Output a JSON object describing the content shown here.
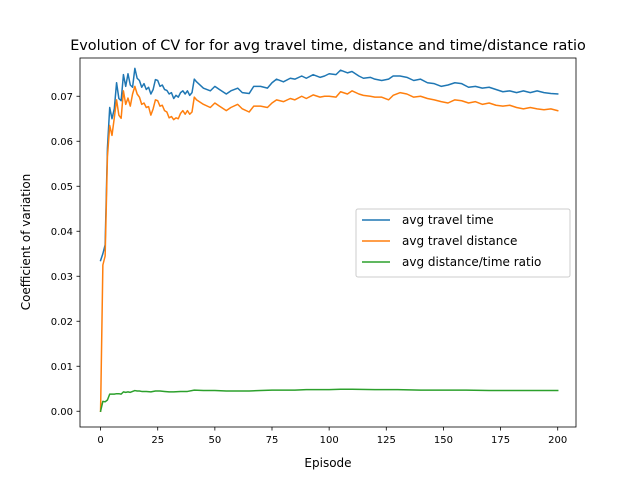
{
  "chart_data": {
    "type": "line",
    "title": "Evolution of CV for for avg travel time, distance and time/distance ratio",
    "xlabel": "Episode",
    "ylabel": "Coefficient of variation",
    "xlim": [
      -9,
      208
    ],
    "ylim": [
      -0.0035,
      0.0785
    ],
    "xticks": [
      "0",
      "25",
      "50",
      "75",
      "100",
      "125",
      "150",
      "175",
      "200"
    ],
    "yticks": [
      "0.00",
      "0.01",
      "0.02",
      "0.03",
      "0.04",
      "0.05",
      "0.06",
      "0.07"
    ],
    "grid": false,
    "legend_position": "center-right",
    "series": [
      {
        "name": "avg travel time",
        "color": "#1f77b4",
        "points": [
          [
            0,
            0.0335
          ],
          [
            1,
            0.035
          ],
          [
            2,
            0.037
          ],
          [
            3,
            0.0585
          ],
          [
            4,
            0.0675
          ],
          [
            5,
            0.065
          ],
          [
            6,
            0.0672
          ],
          [
            7,
            0.073
          ],
          [
            8,
            0.0695
          ],
          [
            9,
            0.069
          ],
          [
            10,
            0.0748
          ],
          [
            11,
            0.0722
          ],
          [
            12,
            0.075
          ],
          [
            13,
            0.0725
          ],
          [
            14,
            0.072
          ],
          [
            15,
            0.0762
          ],
          [
            16,
            0.074
          ],
          [
            17,
            0.0735
          ],
          [
            18,
            0.072
          ],
          [
            19,
            0.0728
          ],
          [
            20,
            0.0715
          ],
          [
            21,
            0.072
          ],
          [
            22,
            0.0705
          ],
          [
            23,
            0.0715
          ],
          [
            24,
            0.0737
          ],
          [
            25,
            0.0735
          ],
          [
            26,
            0.0722
          ],
          [
            27,
            0.0725
          ],
          [
            28,
            0.0715
          ],
          [
            29,
            0.0713
          ],
          [
            30,
            0.0705
          ],
          [
            31,
            0.0708
          ],
          [
            32,
            0.0695
          ],
          [
            33,
            0.0702
          ],
          [
            34,
            0.0698
          ],
          [
            35,
            0.0708
          ],
          [
            36,
            0.0712
          ],
          [
            37,
            0.0705
          ],
          [
            38,
            0.0712
          ],
          [
            39,
            0.0702
          ],
          [
            40,
            0.0708
          ],
          [
            41,
            0.0738
          ],
          [
            42,
            0.0732
          ],
          [
            45,
            0.0718
          ],
          [
            48,
            0.0712
          ],
          [
            50,
            0.0722
          ],
          [
            52,
            0.0715
          ],
          [
            55,
            0.0705
          ],
          [
            57,
            0.0712
          ],
          [
            60,
            0.0718
          ],
          [
            62,
            0.0708
          ],
          [
            65,
            0.0706
          ],
          [
            67,
            0.0722
          ],
          [
            70,
            0.0722
          ],
          [
            73,
            0.0718
          ],
          [
            75,
            0.073
          ],
          [
            77,
            0.0738
          ],
          [
            80,
            0.0732
          ],
          [
            83,
            0.074
          ],
          [
            85,
            0.0738
          ],
          [
            88,
            0.0745
          ],
          [
            90,
            0.074
          ],
          [
            93,
            0.0748
          ],
          [
            96,
            0.0742
          ],
          [
            98,
            0.0745
          ],
          [
            100,
            0.075
          ],
          [
            103,
            0.0748
          ],
          [
            105,
            0.0758
          ],
          [
            108,
            0.0752
          ],
          [
            110,
            0.0755
          ],
          [
            113,
            0.0745
          ],
          [
            115,
            0.074
          ],
          [
            118,
            0.0742
          ],
          [
            120,
            0.0738
          ],
          [
            123,
            0.0735
          ],
          [
            126,
            0.0738
          ],
          [
            128,
            0.0745
          ],
          [
            131,
            0.0745
          ],
          [
            134,
            0.0742
          ],
          [
            137,
            0.0735
          ],
          [
            140,
            0.0738
          ],
          [
            143,
            0.073
          ],
          [
            146,
            0.0728
          ],
          [
            149,
            0.0722
          ],
          [
            152,
            0.0725
          ],
          [
            155,
            0.073
          ],
          [
            158,
            0.0728
          ],
          [
            161,
            0.072
          ],
          [
            164,
            0.0722
          ],
          [
            167,
            0.0718
          ],
          [
            170,
            0.072
          ],
          [
            173,
            0.0715
          ],
          [
            176,
            0.071
          ],
          [
            179,
            0.0712
          ],
          [
            182,
            0.0708
          ],
          [
            185,
            0.0712
          ],
          [
            188,
            0.0708
          ],
          [
            191,
            0.0712
          ],
          [
            194,
            0.0708
          ],
          [
            197,
            0.0706
          ],
          [
            200,
            0.0705
          ]
        ]
      },
      {
        "name": "avg travel distance",
        "color": "#ff7f0e",
        "points": [
          [
            0,
            0.0
          ],
          [
            1,
            0.0325
          ],
          [
            2,
            0.0345
          ],
          [
            3,
            0.0565
          ],
          [
            4,
            0.0635
          ],
          [
            5,
            0.0613
          ],
          [
            6,
            0.0652
          ],
          [
            7,
            0.0692
          ],
          [
            8,
            0.0658
          ],
          [
            9,
            0.0651
          ],
          [
            10,
            0.0712
          ],
          [
            11,
            0.0682
          ],
          [
            12,
            0.0696
          ],
          [
            13,
            0.0678
          ],
          [
            14,
            0.0705
          ],
          [
            15,
            0.0722
          ],
          [
            16,
            0.0705
          ],
          [
            17,
            0.0698
          ],
          [
            18,
            0.0682
          ],
          [
            19,
            0.0685
          ],
          [
            20,
            0.0675
          ],
          [
            21,
            0.0677
          ],
          [
            22,
            0.0658
          ],
          [
            23,
            0.0672
          ],
          [
            24,
            0.0692
          ],
          [
            25,
            0.069
          ],
          [
            26,
            0.0678
          ],
          [
            27,
            0.068
          ],
          [
            28,
            0.0668
          ],
          [
            29,
            0.0665
          ],
          [
            30,
            0.0652
          ],
          [
            31,
            0.0655
          ],
          [
            32,
            0.0648
          ],
          [
            33,
            0.0652
          ],
          [
            34,
            0.065
          ],
          [
            35,
            0.0662
          ],
          [
            36,
            0.0668
          ],
          [
            37,
            0.066
          ],
          [
            38,
            0.0668
          ],
          [
            39,
            0.066
          ],
          [
            40,
            0.0665
          ],
          [
            41,
            0.0698
          ],
          [
            42,
            0.0692
          ],
          [
            45,
            0.0682
          ],
          [
            48,
            0.0675
          ],
          [
            50,
            0.0685
          ],
          [
            52,
            0.0678
          ],
          [
            55,
            0.0668
          ],
          [
            57,
            0.0675
          ],
          [
            60,
            0.0682
          ],
          [
            62,
            0.0672
          ],
          [
            65,
            0.0665
          ],
          [
            67,
            0.0678
          ],
          [
            70,
            0.0678
          ],
          [
            73,
            0.0675
          ],
          [
            75,
            0.0685
          ],
          [
            77,
            0.0692
          ],
          [
            80,
            0.0688
          ],
          [
            83,
            0.0695
          ],
          [
            85,
            0.0692
          ],
          [
            88,
            0.07
          ],
          [
            90,
            0.0695
          ],
          [
            93,
            0.0703
          ],
          [
            96,
            0.0698
          ],
          [
            98,
            0.07
          ],
          [
            100,
            0.07
          ],
          [
            103,
            0.0698
          ],
          [
            105,
            0.071
          ],
          [
            108,
            0.0705
          ],
          [
            110,
            0.0712
          ],
          [
            113,
            0.0705
          ],
          [
            115,
            0.0702
          ],
          [
            118,
            0.07
          ],
          [
            120,
            0.0698
          ],
          [
            123,
            0.0698
          ],
          [
            126,
            0.0692
          ],
          [
            128,
            0.0702
          ],
          [
            131,
            0.0708
          ],
          [
            134,
            0.0705
          ],
          [
            137,
            0.0698
          ],
          [
            140,
            0.07
          ],
          [
            143,
            0.0695
          ],
          [
            146,
            0.0692
          ],
          [
            149,
            0.0688
          ],
          [
            152,
            0.0685
          ],
          [
            155,
            0.0692
          ],
          [
            158,
            0.069
          ],
          [
            161,
            0.0685
          ],
          [
            164,
            0.0688
          ],
          [
            167,
            0.0682
          ],
          [
            170,
            0.0685
          ],
          [
            173,
            0.068
          ],
          [
            176,
            0.0678
          ],
          [
            179,
            0.068
          ],
          [
            182,
            0.0675
          ],
          [
            185,
            0.0672
          ],
          [
            188,
            0.0675
          ],
          [
            191,
            0.0672
          ],
          [
            194,
            0.067
          ],
          [
            197,
            0.0672
          ],
          [
            200,
            0.0668
          ]
        ]
      },
      {
        "name": "avg distance/time ratio",
        "color": "#2ca02c",
        "points": [
          [
            0,
            0.0
          ],
          [
            1,
            0.0022
          ],
          [
            2,
            0.0021
          ],
          [
            3,
            0.0025
          ],
          [
            4,
            0.0038
          ],
          [
            5,
            0.0038
          ],
          [
            6,
            0.0038
          ],
          [
            7,
            0.0039
          ],
          [
            8,
            0.0039
          ],
          [
            9,
            0.0038
          ],
          [
            10,
            0.0043
          ],
          [
            11,
            0.0042
          ],
          [
            12,
            0.0043
          ],
          [
            13,
            0.0042
          ],
          [
            14,
            0.0044
          ],
          [
            15,
            0.0046
          ],
          [
            16,
            0.0045
          ],
          [
            17,
            0.0045
          ],
          [
            18,
            0.0044
          ],
          [
            20,
            0.0044
          ],
          [
            22,
            0.0043
          ],
          [
            24,
            0.0045
          ],
          [
            26,
            0.0045
          ],
          [
            28,
            0.0044
          ],
          [
            30,
            0.0043
          ],
          [
            32,
            0.0043
          ],
          [
            35,
            0.0044
          ],
          [
            38,
            0.0044
          ],
          [
            41,
            0.0047
          ],
          [
            45,
            0.0046
          ],
          [
            50,
            0.0046
          ],
          [
            55,
            0.0045
          ],
          [
            60,
            0.0045
          ],
          [
            65,
            0.0045
          ],
          [
            70,
            0.0046
          ],
          [
            75,
            0.0047
          ],
          [
            80,
            0.0047
          ],
          [
            85,
            0.0047
          ],
          [
            90,
            0.0048
          ],
          [
            95,
            0.0048
          ],
          [
            100,
            0.0048
          ],
          [
            105,
            0.0049
          ],
          [
            110,
            0.0049
          ],
          [
            120,
            0.0048
          ],
          [
            130,
            0.0048
          ],
          [
            140,
            0.0047
          ],
          [
            150,
            0.0047
          ],
          [
            160,
            0.0047
          ],
          [
            170,
            0.0046
          ],
          [
            180,
            0.0046
          ],
          [
            190,
            0.0046
          ],
          [
            200,
            0.0046
          ]
        ]
      }
    ]
  }
}
